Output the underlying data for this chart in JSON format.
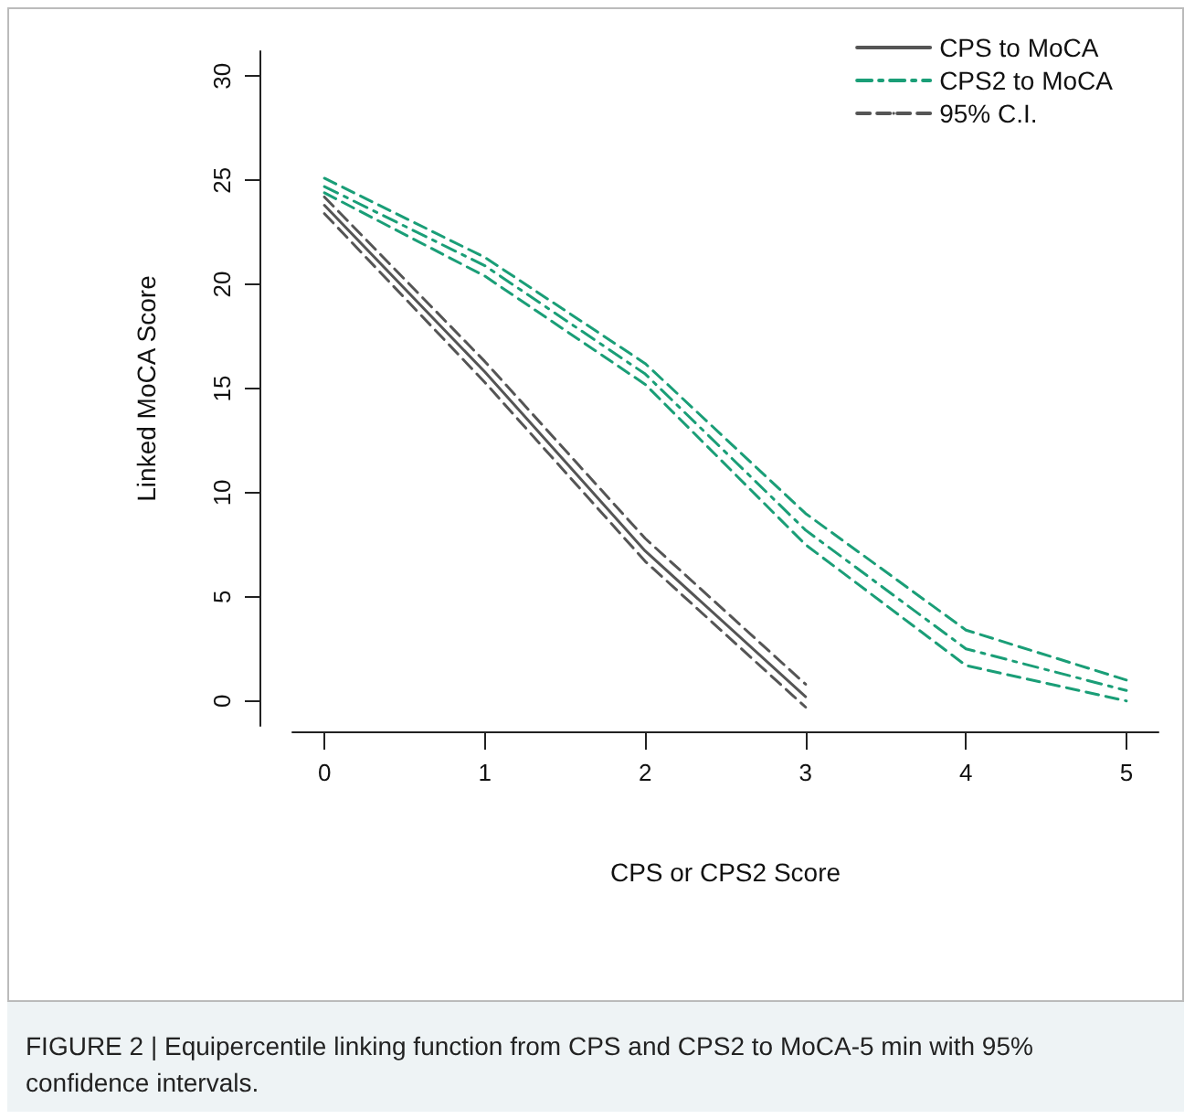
{
  "chart_data": {
    "type": "line",
    "xlabel": "CPS or CPS2 Score",
    "ylabel": "Linked MoCA Score",
    "x": [
      0,
      1,
      2,
      3,
      4,
      5
    ],
    "xlim": [
      -0.2,
      5.2
    ],
    "ylim": [
      -1.2,
      31.2
    ],
    "xticks": [
      0,
      1,
      2,
      3,
      4,
      5
    ],
    "yticks": [
      0,
      5,
      10,
      15,
      20,
      25,
      30
    ],
    "grid": false,
    "legend": "top right",
    "marker": "none",
    "series": [
      {
        "name": "CPS to MoCA",
        "color": "#555555",
        "line_style": "solid",
        "x": [
          0,
          1,
          2,
          3
        ],
        "values": [
          23.8,
          15.8,
          7.2,
          0.2
        ]
      },
      {
        "name": "CPS2 to MoCA",
        "color": "#1a9e77",
        "line_style": "dashdot",
        "values": [
          24.7,
          20.9,
          15.7,
          8.2,
          2.5,
          0.5
        ]
      },
      {
        "name": "95% C.I.",
        "color": "#555555",
        "line_style": "dashed",
        "x": [
          0,
          1,
          2,
          3
        ],
        "values": [
          24.2,
          16.3,
          7.8,
          0.8
        ]
      },
      {
        "color": "#555555",
        "line_style": "dashed",
        "x": [
          0,
          1,
          2,
          3
        ],
        "values": [
          23.4,
          15.3,
          6.7,
          -0.3
        ]
      },
      {
        "color": "#1a9e77",
        "line_style": "dashed",
        "values": [
          25.1,
          21.3,
          16.2,
          9.0,
          3.4,
          1.0
        ]
      },
      {
        "color": "#1a9e77",
        "line_style": "dashed",
        "values": [
          24.4,
          20.4,
          15.2,
          7.5,
          1.7,
          0.0
        ]
      }
    ],
    "annotations": [
      "FIGURE 2 | Equipercentile linking function from CPS and CPS2 to MoCA-5 min with 95% confidence intervals."
    ]
  }
}
